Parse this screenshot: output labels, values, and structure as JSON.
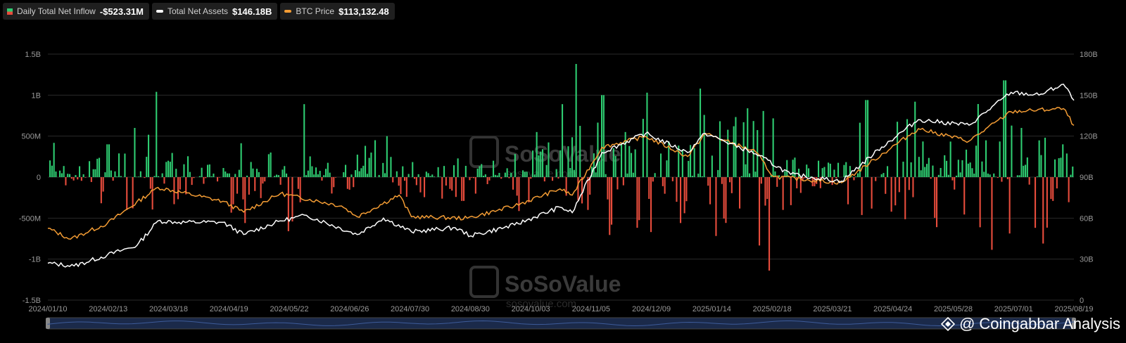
{
  "legend": {
    "inflow": {
      "label": "Daily Total Net Inflow",
      "value": "-$523.31M",
      "color_pos": "#2ecc71",
      "color_neg": "#e74c3c"
    },
    "assets": {
      "label": "Total Net Assets",
      "value": "$146.18B",
      "color": "#ffffff"
    },
    "btc": {
      "label": "BTC Price",
      "value": "$113,132.48",
      "color": "#f39c34"
    }
  },
  "watermark": {
    "brand": "SoSoValue",
    "site": "sosovalue.com"
  },
  "credit": {
    "at": "@",
    "text": "Coingabbar Analysis"
  },
  "chart_data": {
    "type": "bar",
    "x_ticks": [
      "2024/01/10",
      "2024/02/13",
      "2024/03/18",
      "2024/04/19",
      "2024/05/22",
      "2024/06/26",
      "2024/07/30",
      "2024/08/30",
      "2024/10/03",
      "2024/11/05",
      "2024/12/09",
      "2025/01/14",
      "2025/02/18",
      "2025/03/21",
      "2025/04/24",
      "2025/05/28",
      "2025/07/01",
      "2025/08/19"
    ],
    "y_left_ticks": [
      "1.5B",
      "1B",
      "500M",
      "0",
      "-500M",
      "-1B",
      "-1.5B"
    ],
    "y_left_range": [
      -1.5,
      1.5
    ],
    "y_left_unit": "B USD",
    "y_right_ticks": [
      "180B",
      "150B",
      "120B",
      "90B",
      "60B",
      "30B",
      "0"
    ],
    "y_right_range": [
      0,
      180
    ],
    "grid": true,
    "legend_position": "top-left",
    "inflow_keypoints": [
      {
        "x": "2024/01/10",
        "v": 0.62
      },
      {
        "x": "2024/01/20",
        "v": -0.1
      },
      {
        "x": "2024/02/13",
        "v": 0.4
      },
      {
        "x": "2024/02/28",
        "v": 0.6
      },
      {
        "x": "2024/03/12",
        "v": 1.04
      },
      {
        "x": "2024/03/18",
        "v": 0.2
      },
      {
        "x": "2024/03/22",
        "v": -0.33
      },
      {
        "x": "2024/04/10",
        "v": 0.15
      },
      {
        "x": "2024/05/01",
        "v": -0.56
      },
      {
        "x": "2024/05/16",
        "v": 0.3
      },
      {
        "x": "2024/06/04",
        "v": 0.89
      },
      {
        "x": "2024/06/20",
        "v": -0.2
      },
      {
        "x": "2024/07/15",
        "v": 0.45
      },
      {
        "x": "2024/07/22",
        "v": 0.5
      },
      {
        "x": "2024/08/02",
        "v": -0.24
      },
      {
        "x": "2024/09/03",
        "v": -0.29
      },
      {
        "x": "2024/09/20",
        "v": 0.2
      },
      {
        "x": "2024/10/15",
        "v": 0.55
      },
      {
        "x": "2024/10/30",
        "v": 0.89
      },
      {
        "x": "2024/11/07",
        "v": 1.38
      },
      {
        "x": "2024/11/14",
        "v": -0.4
      },
      {
        "x": "2024/11/22",
        "v": 1.0
      },
      {
        "x": "2024/12/05",
        "v": 0.55
      },
      {
        "x": "2024/12/17",
        "v": 1.03
      },
      {
        "x": "2024/12/20",
        "v": -0.67
      },
      {
        "x": "2025/01/06",
        "v": -0.56
      },
      {
        "x": "2025/01/17",
        "v": 1.08
      },
      {
        "x": "2025/02/25",
        "v": -1.14
      },
      {
        "x": "2025/03/05",
        "v": -0.4
      },
      {
        "x": "2025/03/25",
        "v": 0.2
      },
      {
        "x": "2025/04/22",
        "v": 0.94
      },
      {
        "x": "2025/05/20",
        "v": 0.92
      },
      {
        "x": "2025/06/01",
        "v": -0.61
      },
      {
        "x": "2025/07/10",
        "v": 1.18
      },
      {
        "x": "2025/07/20",
        "v": 0.6
      },
      {
        "x": "2025/08/01",
        "v": -0.81
      },
      {
        "x": "2025/08/12",
        "v": 0.4
      },
      {
        "x": "2025/08/19",
        "v": -0.52
      }
    ],
    "net_assets_series": [
      {
        "x": "2024/01/10",
        "v": 27
      },
      {
        "x": "2024/01/25",
        "v": 25
      },
      {
        "x": "2024/02/13",
        "v": 33
      },
      {
        "x": "2024/03/01",
        "v": 40
      },
      {
        "x": "2024/03/13",
        "v": 58
      },
      {
        "x": "2024/03/25",
        "v": 57
      },
      {
        "x": "2024/04/19",
        "v": 57
      },
      {
        "x": "2024/05/01",
        "v": 48
      },
      {
        "x": "2024/05/22",
        "v": 58
      },
      {
        "x": "2024/06/06",
        "v": 62
      },
      {
        "x": "2024/07/05",
        "v": 48
      },
      {
        "x": "2024/07/20",
        "v": 60
      },
      {
        "x": "2024/08/05",
        "v": 50
      },
      {
        "x": "2024/08/30",
        "v": 53
      },
      {
        "x": "2024/09/08",
        "v": 47
      },
      {
        "x": "2024/10/03",
        "v": 55
      },
      {
        "x": "2024/10/29",
        "v": 68
      },
      {
        "x": "2024/11/05",
        "v": 64
      },
      {
        "x": "2024/11/22",
        "v": 108
      },
      {
        "x": "2024/12/17",
        "v": 122
      },
      {
        "x": "2025/01/10",
        "v": 108
      },
      {
        "x": "2025/01/20",
        "v": 122
      },
      {
        "x": "2025/02/18",
        "v": 107
      },
      {
        "x": "2025/03/10",
        "v": 92
      },
      {
        "x": "2025/04/08",
        "v": 87
      },
      {
        "x": "2025/05/01",
        "v": 112
      },
      {
        "x": "2025/05/22",
        "v": 132
      },
      {
        "x": "2025/06/20",
        "v": 128
      },
      {
        "x": "2025/07/14",
        "v": 152
      },
      {
        "x": "2025/07/30",
        "v": 150
      },
      {
        "x": "2025/08/13",
        "v": 158
      },
      {
        "x": "2025/08/19",
        "v": 146.18
      }
    ],
    "btc_price_series": [
      {
        "x": "2024/01/10",
        "v": 46500
      },
      {
        "x": "2024/01/23",
        "v": 39500
      },
      {
        "x": "2024/02/13",
        "v": 49700
      },
      {
        "x": "2024/03/13",
        "v": 73000
      },
      {
        "x": "2024/04/19",
        "v": 64000
      },
      {
        "x": "2024/05/01",
        "v": 57000
      },
      {
        "x": "2024/05/22",
        "v": 69000
      },
      {
        "x": "2024/06/26",
        "v": 61000
      },
      {
        "x": "2024/07/05",
        "v": 54000
      },
      {
        "x": "2024/07/29",
        "v": 68000
      },
      {
        "x": "2024/08/05",
        "v": 54000
      },
      {
        "x": "2024/09/06",
        "v": 53000
      },
      {
        "x": "2024/10/03",
        "v": 61000
      },
      {
        "x": "2024/10/29",
        "v": 72000
      },
      {
        "x": "2024/11/05",
        "v": 68000
      },
      {
        "x": "2024/11/22",
        "v": 99000
      },
      {
        "x": "2024/12/17",
        "v": 106000
      },
      {
        "x": "2025/01/10",
        "v": 93000
      },
      {
        "x": "2025/01/20",
        "v": 108000
      },
      {
        "x": "2025/02/18",
        "v": 96000
      },
      {
        "x": "2025/02/28",
        "v": 80000
      },
      {
        "x": "2025/04/08",
        "v": 76000
      },
      {
        "x": "2025/05/22",
        "v": 111000
      },
      {
        "x": "2025/06/20",
        "v": 103000
      },
      {
        "x": "2025/07/14",
        "v": 122000
      },
      {
        "x": "2025/08/13",
        "v": 124000
      },
      {
        "x": "2025/08/19",
        "v": 113132.48
      }
    ],
    "btc_axis_note": "BTC price line shares the right axis visually"
  }
}
